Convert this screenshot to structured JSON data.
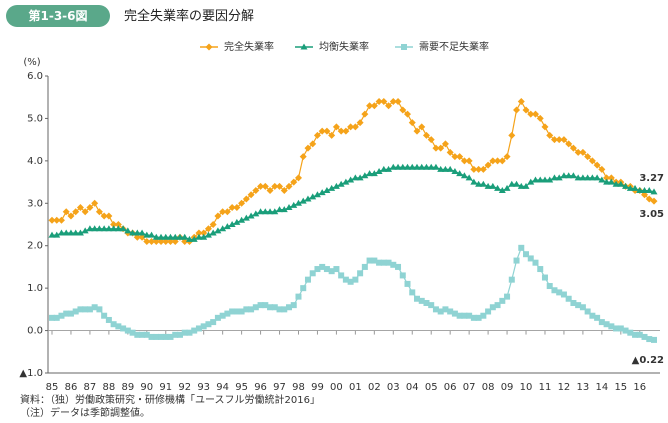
{
  "chart_data": {
    "type": "line",
    "figure_label": "第1-3-6図",
    "title": "完全失業率の要因分解",
    "y_axis_label": "(%)",
    "categories": [
      "85",
      null,
      null,
      null,
      "86",
      null,
      null,
      null,
      "87",
      null,
      null,
      null,
      "88",
      null,
      null,
      null,
      "89",
      null,
      null,
      null,
      "90",
      null,
      null,
      null,
      "91",
      null,
      null,
      null,
      "92",
      null,
      null,
      null,
      "93",
      null,
      null,
      null,
      "94",
      null,
      null,
      null,
      "95",
      null,
      null,
      null,
      "96",
      null,
      null,
      null,
      "97",
      null,
      null,
      null,
      "98",
      null,
      null,
      null,
      "99",
      null,
      null,
      null,
      "00",
      null,
      null,
      null,
      "01",
      null,
      null,
      null,
      "02",
      null,
      null,
      null,
      "03",
      null,
      null,
      null,
      "04",
      null,
      null,
      null,
      "05",
      null,
      null,
      null,
      "06",
      null,
      null,
      null,
      "07",
      null,
      null,
      null,
      "08",
      null,
      null,
      null,
      "09",
      null,
      null,
      null,
      "10",
      null,
      null,
      null,
      "11",
      null,
      null,
      null,
      "12",
      null,
      null,
      null,
      "13",
      null,
      null,
      null,
      "14",
      null,
      null,
      null,
      "15",
      null,
      null,
      null,
      "16",
      null,
      null,
      null
    ],
    "series": [
      {
        "name": "完全失業率",
        "color": "#f5a31a",
        "marker": "diamond",
        "values": [
          2.6,
          2.6,
          2.6,
          2.8,
          2.7,
          2.8,
          2.9,
          2.8,
          2.9,
          3.0,
          2.8,
          2.7,
          2.7,
          2.5,
          2.5,
          2.4,
          2.3,
          2.3,
          2.2,
          2.2,
          2.1,
          2.1,
          2.1,
          2.1,
          2.1,
          2.1,
          2.1,
          2.2,
          2.1,
          2.1,
          2.2,
          2.3,
          2.3,
          2.4,
          2.5,
          2.7,
          2.8,
          2.8,
          2.9,
          2.9,
          3.0,
          3.1,
          3.2,
          3.3,
          3.4,
          3.4,
          3.3,
          3.4,
          3.4,
          3.3,
          3.4,
          3.5,
          3.6,
          4.1,
          4.3,
          4.4,
          4.6,
          4.7,
          4.7,
          4.6,
          4.8,
          4.7,
          4.7,
          4.8,
          4.8,
          4.9,
          5.1,
          5.3,
          5.3,
          5.4,
          5.4,
          5.3,
          5.4,
          5.4,
          5.2,
          5.1,
          4.9,
          4.7,
          4.8,
          4.6,
          4.5,
          4.3,
          4.3,
          4.4,
          4.2,
          4.1,
          4.1,
          4.0,
          4.0,
          3.8,
          3.8,
          3.8,
          3.9,
          4.0,
          4.0,
          4.0,
          4.1,
          4.6,
          5.2,
          5.4,
          5.2,
          5.1,
          5.1,
          5.0,
          4.8,
          4.6,
          4.5,
          4.5,
          4.5,
          4.4,
          4.3,
          4.2,
          4.2,
          4.1,
          4.0,
          3.9,
          3.8,
          3.6,
          3.6,
          3.5,
          3.5,
          3.4,
          3.4,
          3.3,
          3.3,
          3.2,
          3.1,
          3.05
        ]
      },
      {
        "name": "均衡失業率",
        "color": "#1a9e7a",
        "marker": "triangle",
        "values": [
          2.25,
          2.25,
          2.3,
          2.3,
          2.3,
          2.3,
          2.3,
          2.35,
          2.4,
          2.4,
          2.4,
          2.4,
          2.4,
          2.4,
          2.4,
          2.4,
          2.35,
          2.3,
          2.3,
          2.3,
          2.25,
          2.25,
          2.2,
          2.2,
          2.2,
          2.2,
          2.2,
          2.2,
          2.2,
          2.15,
          2.15,
          2.2,
          2.2,
          2.25,
          2.3,
          2.35,
          2.4,
          2.45,
          2.5,
          2.55,
          2.6,
          2.65,
          2.7,
          2.75,
          2.8,
          2.8,
          2.8,
          2.8,
          2.85,
          2.85,
          2.9,
          2.95,
          3.0,
          3.05,
          3.1,
          3.15,
          3.2,
          3.25,
          3.3,
          3.35,
          3.4,
          3.45,
          3.5,
          3.55,
          3.6,
          3.6,
          3.65,
          3.7,
          3.7,
          3.75,
          3.8,
          3.8,
          3.85,
          3.85,
          3.85,
          3.85,
          3.85,
          3.85,
          3.85,
          3.85,
          3.85,
          3.85,
          3.8,
          3.8,
          3.8,
          3.75,
          3.7,
          3.65,
          3.6,
          3.5,
          3.45,
          3.45,
          3.4,
          3.4,
          3.35,
          3.3,
          3.35,
          3.45,
          3.45,
          3.4,
          3.4,
          3.5,
          3.55,
          3.55,
          3.55,
          3.55,
          3.6,
          3.6,
          3.65,
          3.65,
          3.65,
          3.6,
          3.6,
          3.6,
          3.6,
          3.6,
          3.55,
          3.5,
          3.5,
          3.45,
          3.45,
          3.4,
          3.35,
          3.35,
          3.3,
          3.3,
          3.3,
          3.27
        ]
      },
      {
        "name": "需要不足失業率",
        "color": "#8fd3d3",
        "marker": "square",
        "values": [
          0.3,
          0.3,
          0.35,
          0.4,
          0.4,
          0.45,
          0.5,
          0.5,
          0.5,
          0.55,
          0.5,
          0.35,
          0.25,
          0.15,
          0.1,
          0.05,
          0.0,
          -0.05,
          -0.1,
          -0.1,
          -0.1,
          -0.15,
          -0.15,
          -0.15,
          -0.15,
          -0.15,
          -0.1,
          -0.1,
          -0.05,
          -0.05,
          0.0,
          0.05,
          0.1,
          0.15,
          0.2,
          0.3,
          0.35,
          0.4,
          0.45,
          0.45,
          0.45,
          0.5,
          0.5,
          0.55,
          0.6,
          0.6,
          0.55,
          0.55,
          0.5,
          0.5,
          0.55,
          0.6,
          0.8,
          1.0,
          1.2,
          1.35,
          1.45,
          1.5,
          1.45,
          1.4,
          1.45,
          1.3,
          1.2,
          1.15,
          1.2,
          1.35,
          1.5,
          1.65,
          1.65,
          1.6,
          1.6,
          1.6,
          1.55,
          1.5,
          1.3,
          1.1,
          0.9,
          0.75,
          0.7,
          0.65,
          0.6,
          0.5,
          0.45,
          0.5,
          0.45,
          0.4,
          0.35,
          0.35,
          0.35,
          0.3,
          0.3,
          0.35,
          0.45,
          0.55,
          0.6,
          0.7,
          0.8,
          1.2,
          1.65,
          1.95,
          1.8,
          1.7,
          1.6,
          1.45,
          1.25,
          1.05,
          0.95,
          0.9,
          0.85,
          0.75,
          0.65,
          0.6,
          0.55,
          0.45,
          0.35,
          0.3,
          0.2,
          0.15,
          0.1,
          0.05,
          0.05,
          0.0,
          -0.05,
          -0.1,
          -0.1,
          -0.15,
          -0.2,
          -0.22
        ]
      }
    ],
    "ylim": [
      -1,
      6
    ],
    "yticks": [
      {
        "value": -1,
        "label": "▲1.0"
      },
      {
        "value": 0,
        "label": "0.0"
      },
      {
        "value": 1,
        "label": "1.0"
      },
      {
        "value": 2,
        "label": "2.0"
      },
      {
        "value": 3,
        "label": "3.0"
      },
      {
        "value": 4,
        "label": "4.0"
      },
      {
        "value": 5,
        "label": "5.0"
      },
      {
        "value": 6,
        "label": "6.0"
      }
    ],
    "grid": false,
    "legend": "top",
    "annotations": [
      "3.27",
      "3.05",
      "▲0.22"
    ],
    "notes": [
      "資料：（独）労働政策研究・研修機構「ユースフル労働統計2016」",
      "（注）データは季節調整値。"
    ]
  }
}
